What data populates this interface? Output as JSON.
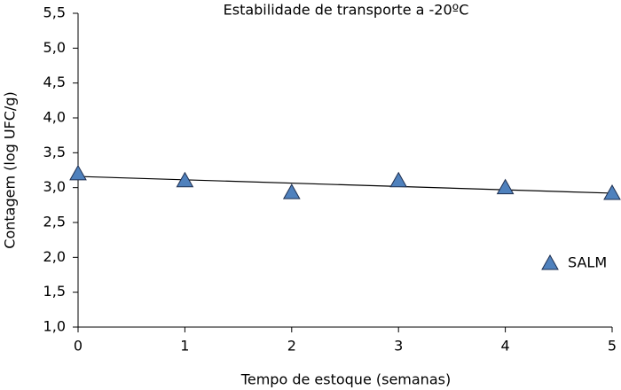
{
  "chart_data": {
    "type": "scatter",
    "title": "Estabilidade de transporte a -20ºC",
    "x_label": "Tempo de estoque (semanas)",
    "y_label": "Contagem (log UFC/g)",
    "series": [
      {
        "name": "SALM",
        "color": "#4f81bd",
        "x": [
          0,
          1,
          2,
          3,
          4,
          5
        ],
        "values": [
          3.2,
          3.1,
          2.93,
          3.1,
          3.0,
          2.92
        ]
      }
    ],
    "trendline": {
      "x": [
        0,
        5
      ],
      "values": [
        3.16,
        2.92
      ]
    },
    "xlim": [
      0,
      5
    ],
    "xticks": [
      0,
      1,
      2,
      3,
      4,
      5
    ],
    "ylim": [
      1.0,
      5.5
    ],
    "yticks": [
      {
        "value": 1.0,
        "label": "1,0"
      },
      {
        "value": 1.5,
        "label": "1,5"
      },
      {
        "value": 2.0,
        "label": "2,0"
      },
      {
        "value": 2.5,
        "label": "2,5"
      },
      {
        "value": 3.0,
        "label": "3,0"
      },
      {
        "value": 3.5,
        "label": "3,5"
      },
      {
        "value": 4.0,
        "label": "4,0"
      },
      {
        "value": 4.5,
        "label": "4,5"
      },
      {
        "value": 5.0,
        "label": "5,0"
      },
      {
        "value": 5.5,
        "label": "5,5"
      }
    ],
    "legend": "right"
  }
}
